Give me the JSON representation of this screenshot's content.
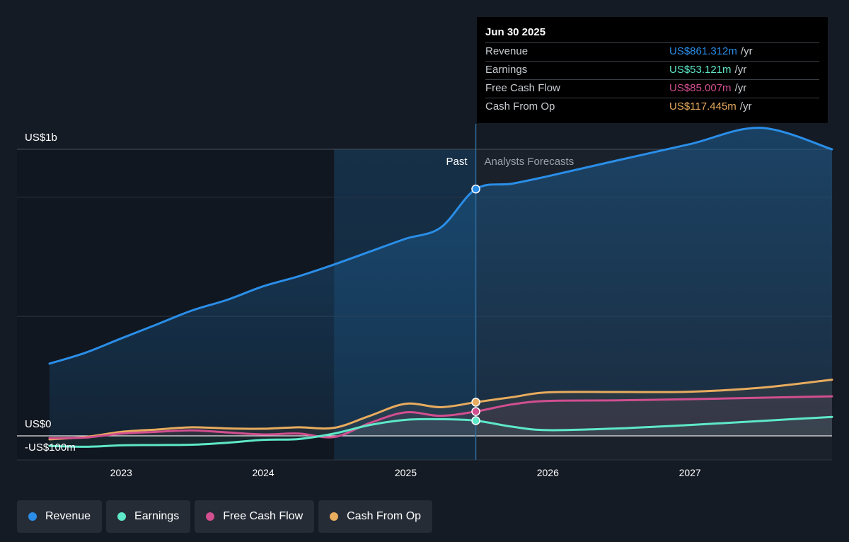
{
  "chart_data": {
    "type": "line",
    "y_axis": {
      "top_label": "US$1b",
      "zero_label": "US$0",
      "bottom_label": "-US$100m",
      "ylim": [
        -100,
        1000
      ],
      "unit": "US$m"
    },
    "x_ticks": [
      "2023",
      "2024",
      "2025",
      "2026",
      "2027"
    ],
    "zones": {
      "past_label": "Past",
      "forecast_label": "Analysts Forecasts",
      "divider_date": "2025-06-30"
    },
    "grid": true,
    "series": [
      {
        "name": "Revenue",
        "color": "#2a8ee8",
        "points": [
          [
            "2022-07-01",
            252
          ],
          [
            "2022-10-01",
            290
          ],
          [
            "2023-01-01",
            340
          ],
          [
            "2023-04-01",
            388
          ],
          [
            "2023-07-01",
            437
          ],
          [
            "2023-10-01",
            475
          ],
          [
            "2024-01-01",
            522
          ],
          [
            "2024-04-01",
            557
          ],
          [
            "2024-07-01",
            598
          ],
          [
            "2024-10-01",
            643
          ],
          [
            "2025-01-01",
            688
          ],
          [
            "2025-04-01",
            727
          ],
          [
            "2025-06-30",
            861.312
          ],
          [
            "2025-10-01",
            880
          ],
          [
            "2026-01-01",
            906
          ],
          [
            "2026-07-01",
            962
          ],
          [
            "2027-01-01",
            1018
          ],
          [
            "2027-07-01",
            1075
          ],
          [
            "2028-01-01",
            1000
          ]
        ]
      },
      {
        "name": "Earnings",
        "color": "#5ee8c8",
        "points": [
          [
            "2022-07-01",
            -35
          ],
          [
            "2022-10-01",
            -38
          ],
          [
            "2023-01-01",
            -33
          ],
          [
            "2023-04-01",
            -32
          ],
          [
            "2023-07-01",
            -31
          ],
          [
            "2023-10-01",
            -24
          ],
          [
            "2024-01-01",
            -14
          ],
          [
            "2024-04-01",
            -11
          ],
          [
            "2024-07-01",
            8
          ],
          [
            "2024-10-01",
            38
          ],
          [
            "2025-01-01",
            56
          ],
          [
            "2025-04-01",
            58
          ],
          [
            "2025-06-30",
            53.121
          ],
          [
            "2025-10-01",
            32
          ],
          [
            "2026-01-01",
            20
          ],
          [
            "2026-07-01",
            26
          ],
          [
            "2027-01-01",
            38
          ],
          [
            "2027-07-01",
            52
          ],
          [
            "2028-01-01",
            66
          ]
        ]
      },
      {
        "name": "Free Cash Flow",
        "color": "#d14f8f",
        "points": [
          [
            "2022-07-01",
            -8
          ],
          [
            "2022-10-01",
            -6
          ],
          [
            "2023-01-01",
            8
          ],
          [
            "2023-04-01",
            14
          ],
          [
            "2023-07-01",
            19
          ],
          [
            "2023-10-01",
            12
          ],
          [
            "2024-01-01",
            5
          ],
          [
            "2024-04-01",
            8
          ],
          [
            "2024-07-01",
            -4
          ],
          [
            "2024-10-01",
            45
          ],
          [
            "2025-01-01",
            82
          ],
          [
            "2025-04-01",
            70
          ],
          [
            "2025-06-30",
            85.007
          ],
          [
            "2025-10-01",
            110
          ],
          [
            "2026-01-01",
            122
          ],
          [
            "2026-07-01",
            124
          ],
          [
            "2027-01-01",
            128
          ],
          [
            "2027-07-01",
            133
          ],
          [
            "2028-01-01",
            138
          ]
        ]
      },
      {
        "name": "Cash From Op",
        "color": "#e8ac5e",
        "points": [
          [
            "2022-07-01",
            -12
          ],
          [
            "2022-10-01",
            -4
          ],
          [
            "2023-01-01",
            14
          ],
          [
            "2023-04-01",
            22
          ],
          [
            "2023-07-01",
            30
          ],
          [
            "2023-10-01",
            26
          ],
          [
            "2024-01-01",
            25
          ],
          [
            "2024-04-01",
            30
          ],
          [
            "2024-07-01",
            28
          ],
          [
            "2024-10-01",
            70
          ],
          [
            "2025-01-01",
            112
          ],
          [
            "2025-04-01",
            100
          ],
          [
            "2025-06-30",
            117.445
          ],
          [
            "2025-10-01",
            135
          ],
          [
            "2026-01-01",
            152
          ],
          [
            "2026-07-01",
            153
          ],
          [
            "2027-01-01",
            154
          ],
          [
            "2027-07-01",
            168
          ],
          [
            "2028-01-01",
            196
          ]
        ]
      }
    ]
  },
  "tooltip": {
    "date": "Jun 30 2025",
    "rows": [
      {
        "label": "Revenue",
        "value": "US$861.312m",
        "unit": "/yr",
        "color": "#2a8ee8"
      },
      {
        "label": "Earnings",
        "value": "US$53.121m",
        "unit": "/yr",
        "color": "#5ee8c8"
      },
      {
        "label": "Free Cash Flow",
        "value": "US$85.007m",
        "unit": "/yr",
        "color": "#d14f8f"
      },
      {
        "label": "Cash From Op",
        "value": "US$117.445m",
        "unit": "/yr",
        "color": "#e8ac5e"
      }
    ]
  },
  "legend": [
    {
      "label": "Revenue",
      "color": "#2a8ee8"
    },
    {
      "label": "Earnings",
      "color": "#5ee8c8"
    },
    {
      "label": "Free Cash Flow",
      "color": "#d14f8f"
    },
    {
      "label": "Cash From Op",
      "color": "#e8ac5e"
    }
  ]
}
